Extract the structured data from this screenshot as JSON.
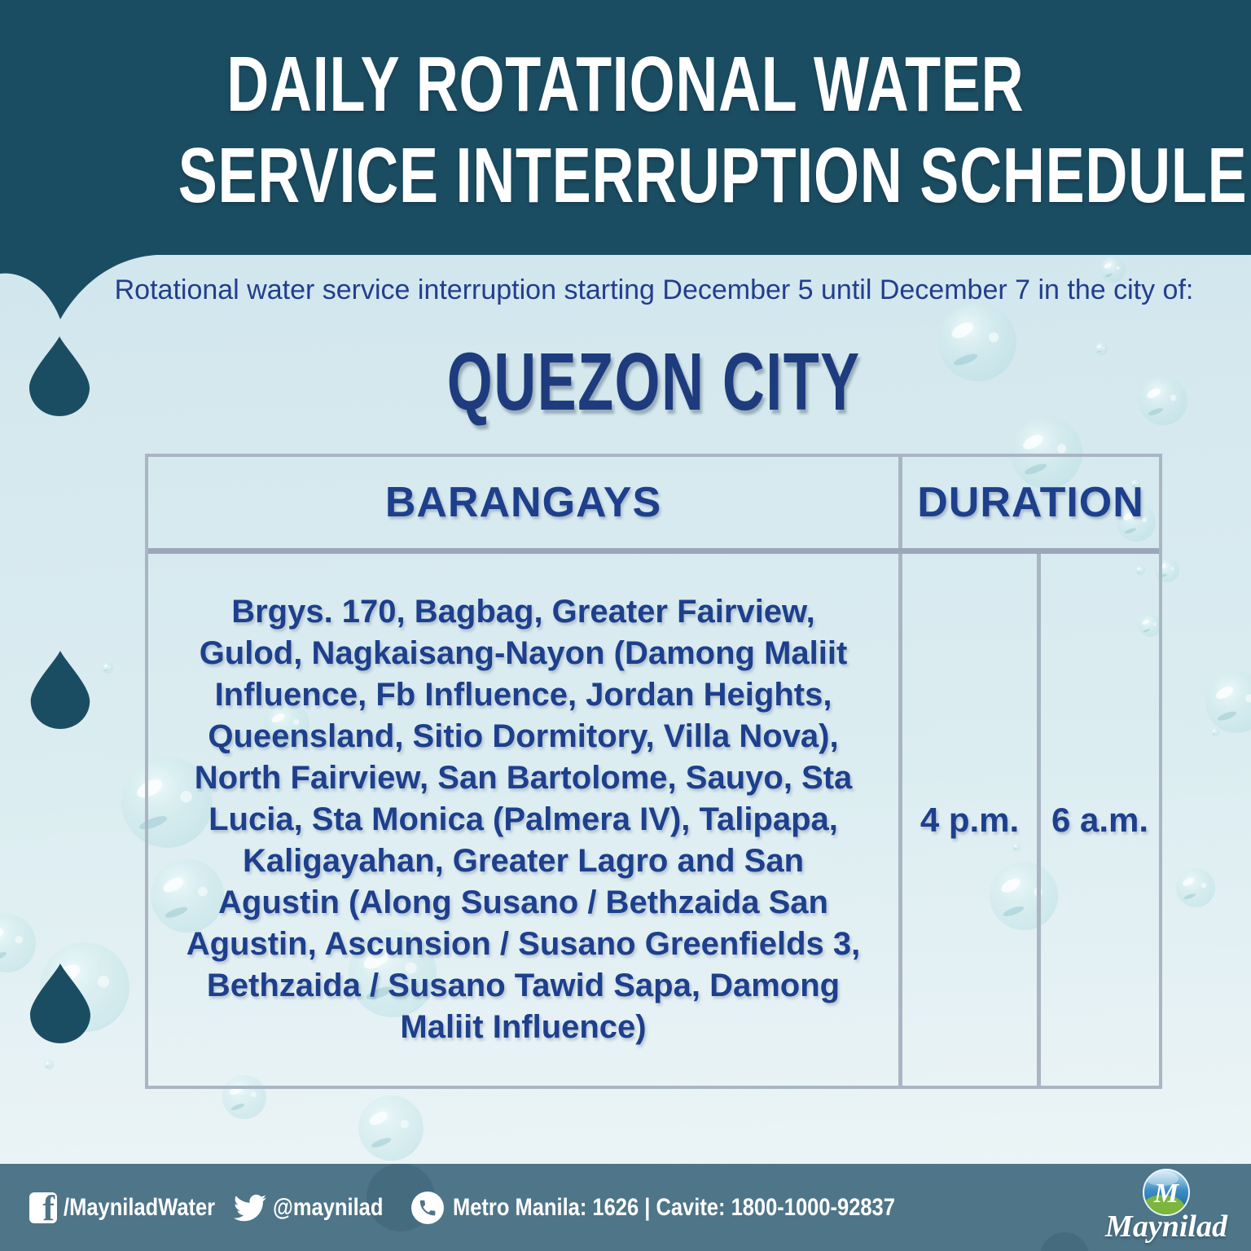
{
  "poster": {
    "title_line1": "DAILY ROTATIONAL WATER",
    "title_line2": "SERVICE INTERRUPTION SCHEDULE",
    "intro_text": "Rotational water service interruption starting December 5 until December 7 in the city of:",
    "city": "QUEZON CITY"
  },
  "table": {
    "header_barangays": "BARANGAYS",
    "header_duration": "DURATION",
    "barangays_lines": [
      "Brgys. 170, Bagbag, Greater Fairview,",
      "Gulod, Nagkaisang-Nayon (Damong Maliit",
      "Influence, Fb Influence, Jordan Heights,",
      "Queensland, Sitio Dormitory, Villa Nova),",
      "North Fairview, San Bartolome, Sauyo, Sta",
      "Lucia, Sta Monica (Palmera IV), Talipapa,",
      "Kaligayahan, Greater Lagro and San",
      "Agustin (Along Susano / Bethzaida San",
      "Agustin, Ascunsion / Susano Greenfields 3,",
      "Bethzaida / Susano Tawid Sapa, Damong",
      "Maliit Influence)"
    ],
    "duration_start": "4 p.m.",
    "duration_end": "6 a.m."
  },
  "footer": {
    "facebook_icon_letter": "f",
    "facebook_handle": "/MayniladWater",
    "twitter_handle": "@maynilad",
    "hotline": "Metro Manila: 1626 | Cavite: 1800-1000-92837",
    "brand_monogram": "M",
    "brand_name": "Maynilad"
  },
  "colors": {
    "header_teal": "#1b4d62",
    "body_light_blue": "#d3e8ee",
    "headline_white": "#ffffff",
    "intro_navy": "#223e8c",
    "city_navy": "#1e3c7d",
    "table_text_navy": "#1d3f8c",
    "table_border_gray": "#aab5c4",
    "footer_slate": "#4e7588",
    "logo_green": "#7cb63e",
    "logo_blue": "#2e7fba"
  },
  "icons": {
    "facebook": "facebook-icon",
    "twitter": "twitter-bird-icon",
    "phone": "phone-icon",
    "water_drop": "water-drop-icon",
    "bubble": "bubble-decoration",
    "brand_logo": "maynilad-logo"
  }
}
